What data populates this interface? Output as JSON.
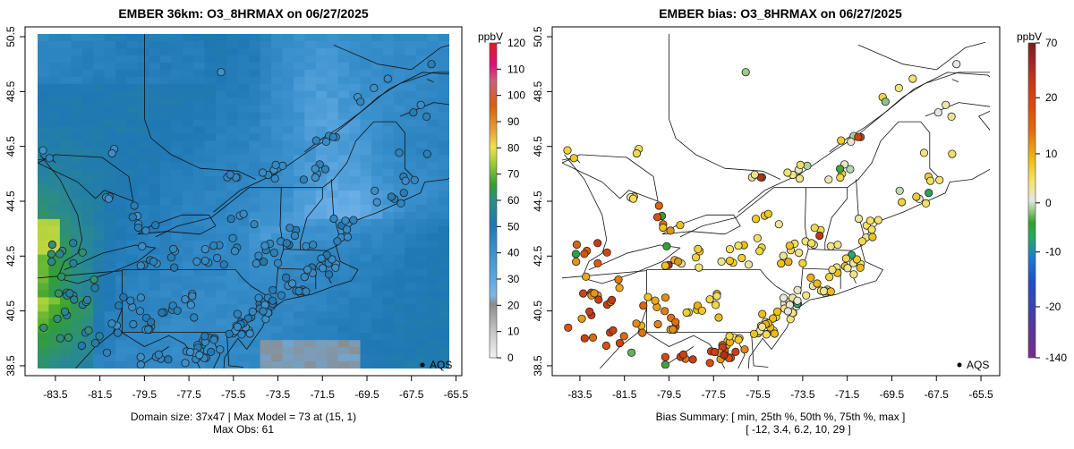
{
  "chart_data": [
    {
      "type": "map-heatmap",
      "title": "EMBER 36km: O3_8HRMAX on 06/27/2025",
      "x_ticks": [
        "-83.5",
        "-81.5",
        "-79.5",
        "-77.5",
        "-75.5",
        "-73.5",
        "-71.5",
        "-69.5",
        "-67.5",
        "-65.5"
      ],
      "y_ticks": [
        "38.5",
        "40.5",
        "42.5",
        "44.5",
        "46.5",
        "48.5",
        "50.5"
      ],
      "xlim": [
        -84.6,
        -65.1
      ],
      "ylim": [
        38.3,
        50.6
      ],
      "colorbar_unit": "ppbV",
      "colorbar_ticks": [
        "0",
        "10",
        "20",
        "30",
        "40",
        "50",
        "60",
        "70",
        "80",
        "90",
        "100",
        "110",
        "120"
      ],
      "colorbar_range": [
        0,
        120
      ],
      "legend_label": "AQS",
      "summary_line1": "Domain size: 37x47 | Max Model = 73 at (15, 1)",
      "summary_line2": "Max Obs: 61"
    },
    {
      "type": "map-scatter",
      "title": "EMBER bias: O3_8HRMAX on 06/27/2025",
      "x_ticks": [
        "-83.5",
        "-81.5",
        "-79.5",
        "-77.5",
        "-75.5",
        "-73.5",
        "-71.5",
        "-69.5",
        "-67.5",
        "-65.5"
      ],
      "y_ticks": [
        "38.5",
        "40.5",
        "42.5",
        "44.5",
        "46.5",
        "48.5",
        "50.5"
      ],
      "xlim": [
        -84.6,
        -65.1
      ],
      "ylim": [
        38.3,
        50.6
      ],
      "colorbar_unit": "ppbV",
      "colorbar_ticks": [
        "70",
        "20",
        "10",
        "0",
        "-10",
        "-20",
        "-140"
      ],
      "legend_label": "AQS",
      "summary_line1": "Bias Summary: [ min, 25th %, 50th %, 75th %, max ]",
      "summary_line2": "[ -12,   3.4,   6.2,   10,   29 ]",
      "bias_summary": {
        "min": -12,
        "p25": 3.4,
        "p50": 6.2,
        "p75": 10,
        "max": 29
      }
    }
  ],
  "colors": {
    "o3_scale": [
      "#f2f2f2",
      "#8c8c8c",
      "#6aaee6",
      "#3d93cf",
      "#1f78b4",
      "#2b8c8a",
      "#33a02c",
      "#9ecf3a",
      "#f4e04d",
      "#e8a23b",
      "#d95f0e",
      "#c9607a",
      "#e0107a",
      "#e31a1c"
    ],
    "bias_scale": [
      "#7b2a8a",
      "#4b3ca0",
      "#1f4fc9",
      "#1e7bd0",
      "#25a86a",
      "#33a02c",
      "#9acc8a",
      "#e6e6e6",
      "#f2e46a",
      "#f0c418",
      "#e69a16",
      "#e06d10",
      "#d94a0c",
      "#c43a18",
      "#a12626",
      "#7b1e1e"
    ]
  }
}
